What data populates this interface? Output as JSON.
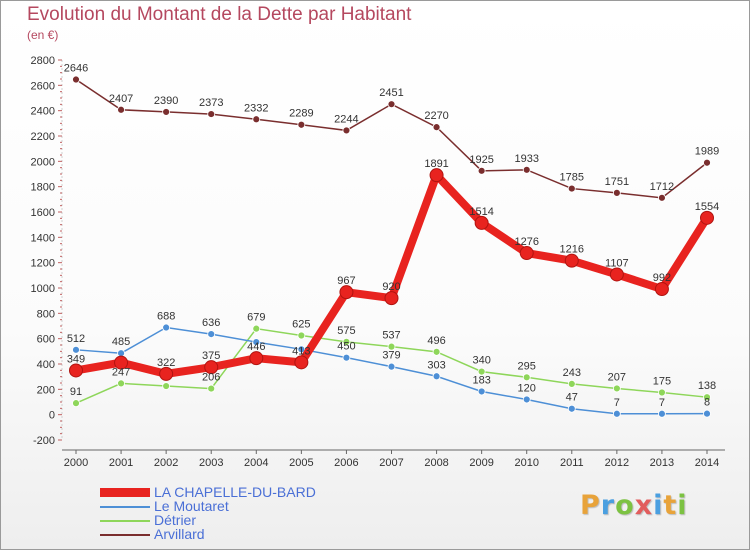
{
  "header": {
    "title": "Evolution du Montant de la Dette par Habitant",
    "unit": "(en €)"
  },
  "logo": {
    "text": "Proxiti",
    "letter_colors": [
      "#e8a33a",
      "#4a9fe0",
      "#7cc242",
      "#e25d5d",
      "#4a9fe0",
      "#e8a33a",
      "#7cc242"
    ]
  },
  "chart_data": {
    "type": "line",
    "title": "Evolution du Montant de la Dette par Habitant",
    "subtitle": "(en €)",
    "xlabel": "",
    "ylabel": "",
    "x": [
      "2000",
      "2001",
      "2002",
      "2003",
      "2004",
      "2005",
      "2006",
      "2007",
      "2008",
      "2009",
      "2010",
      "2011",
      "2012",
      "2013",
      "2014"
    ],
    "ylim": [
      -200,
      2800
    ],
    "yticks": [
      -200,
      0,
      200,
      400,
      600,
      800,
      1000,
      1200,
      1400,
      1600,
      1800,
      2000,
      2200,
      2400,
      2600,
      2800
    ],
    "grid": false,
    "legend_position": "bottom-left",
    "series": [
      {
        "name": "LA CHAPELLE-DU-BARD",
        "color": "#e8231f",
        "emphasis": true,
        "values": [
          349,
          411,
          322,
          375,
          446,
          413,
          967,
          920,
          1891,
          1514,
          1276,
          1216,
          1107,
          992,
          1554
        ],
        "labels": [
          "349",
          "",
          "322",
          "375",
          "446",
          "413",
          "967",
          "920",
          "1891",
          "1514",
          "1276",
          "1216",
          "1107",
          "992",
          "1554"
        ]
      },
      {
        "name": "Le Moutaret",
        "color": "#4d8fd6",
        "emphasis": false,
        "values": [
          512,
          485,
          688,
          636,
          573,
          516,
          450,
          379,
          303,
          183,
          120,
          47,
          7,
          7,
          8
        ],
        "labels": [
          "512",
          "485",
          "688",
          "636",
          "",
          "",
          "450",
          "379",
          "303",
          "183",
          "120",
          "47",
          "7",
          "7",
          "8"
        ]
      },
      {
        "name": "Détrier",
        "color": "#8ed65a",
        "emphasis": false,
        "values": [
          91,
          247,
          226,
          206,
          679,
          625,
          575,
          537,
          496,
          340,
          295,
          243,
          207,
          175,
          138
        ],
        "labels": [
          "91",
          "247",
          "",
          "206",
          "679",
          "625",
          "575",
          "537",
          "496",
          "340",
          "295",
          "243",
          "207",
          "175",
          "138"
        ]
      },
      {
        "name": "Arvillard",
        "color": "#7a2e2e",
        "emphasis": false,
        "values": [
          2646,
          2407,
          2390,
          2373,
          2332,
          2289,
          2244,
          2451,
          2270,
          1925,
          1933,
          1785,
          1751,
          1712,
          1989
        ],
        "labels": [
          "2646",
          "2407",
          "2390",
          "2373",
          "2332",
          "2289",
          "2244",
          "2451",
          "2270",
          "1925",
          "1933",
          "1785",
          "1751",
          "1712",
          "1989"
        ]
      }
    ]
  }
}
